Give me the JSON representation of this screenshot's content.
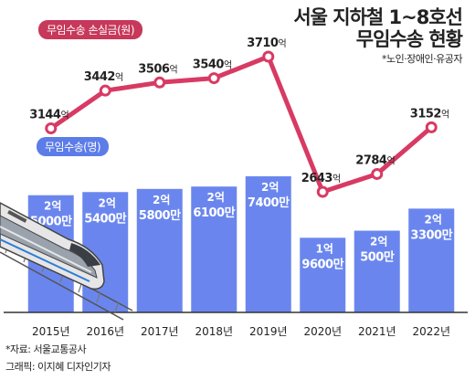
{
  "title": {
    "line1": "서울 지하철 1~8호선",
    "line2": "무임수송 현황",
    "note": "*노인·장애인·유공자"
  },
  "legend": {
    "loss": "무임수송 손실금(원)",
    "ridership": "무임수송(명)"
  },
  "source": "*자료: 서울교통공사",
  "credit": "그래픽: 이지혜 디자인기자",
  "colors": {
    "bar": "#6a86ee",
    "line": "#d83a63",
    "pill_loss": "#c7385a",
    "pill_ride": "#5c7ce8"
  },
  "chart_data": [
    {
      "type": "bar",
      "categories": [
        "2015년",
        "2016년",
        "2017년",
        "2018년",
        "2019년",
        "2020년",
        "2021년",
        "2022년"
      ],
      "series": [
        {
          "name": "무임수송(명)",
          "values": [
            250000000,
            254000000,
            258000000,
            261000000,
            274000000,
            196000000,
            205000000,
            233000000
          ]
        }
      ],
      "value_labels": [
        [
          "2억",
          "5000만"
        ],
        [
          "2억",
          "5400만"
        ],
        [
          "2억",
          "5800만"
        ],
        [
          "2억",
          "6100만"
        ],
        [
          "2억",
          "7400만"
        ],
        [
          "1억",
          "9600만"
        ],
        [
          "2억",
          "500만"
        ],
        [
          "2억",
          "3300만"
        ]
      ]
    },
    {
      "type": "line",
      "categories": [
        "2015년",
        "2016년",
        "2017년",
        "2018년",
        "2019년",
        "2020년",
        "2021년",
        "2022년"
      ],
      "series": [
        {
          "name": "무임수송 손실금(원)",
          "values": [
            3144,
            3442,
            3506,
            3540,
            3710,
            2643,
            2784,
            3152
          ]
        }
      ],
      "unit": "억"
    }
  ]
}
